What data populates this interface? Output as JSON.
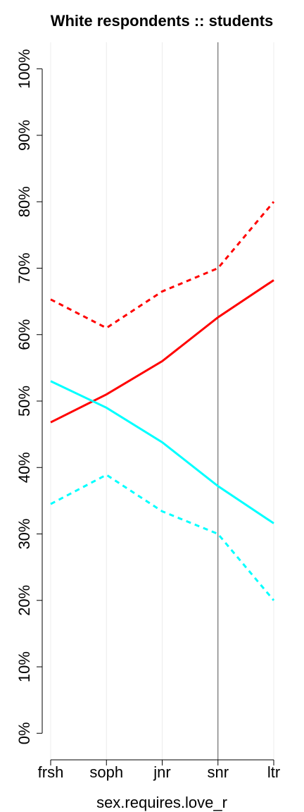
{
  "chart_data": {
    "type": "line",
    "title": "White respondents :: students",
    "x_label": "sex.requires.love_r",
    "categories": [
      "frsh",
      "soph",
      "jnr",
      "snr",
      "ltr"
    ],
    "series": [
      {
        "color": "#ff0000",
        "dashed": false,
        "values": [
          46.8,
          51,
          56,
          62.6,
          68.2
        ]
      },
      {
        "color": "#ff0000",
        "dashed": true,
        "values": [
          65.3,
          61,
          66.5,
          70,
          80
        ]
      },
      {
        "color": "#00ffff",
        "dashed": false,
        "values": [
          53,
          49,
          43.8,
          37.2,
          31.6
        ]
      },
      {
        "color": "#00ffff",
        "dashed": true,
        "values": [
          34.5,
          38.9,
          33.4,
          30,
          20
        ]
      }
    ],
    "ylim": [
      -4,
      104
    ],
    "yticks": [
      {
        "value": 0,
        "label": "0%"
      },
      {
        "value": 10,
        "label": "10%"
      },
      {
        "value": 20,
        "label": "20%"
      },
      {
        "value": 30,
        "label": "30%"
      },
      {
        "value": 40,
        "label": "40%"
      },
      {
        "value": 50,
        "label": "50%"
      },
      {
        "value": 60,
        "label": "60%"
      },
      {
        "value": 70,
        "label": "70%"
      },
      {
        "value": 80,
        "label": "80%"
      },
      {
        "value": 90,
        "label": "90%"
      },
      {
        "value": 100,
        "label": "100%"
      }
    ],
    "grid": true,
    "reference_line": "snr"
  }
}
